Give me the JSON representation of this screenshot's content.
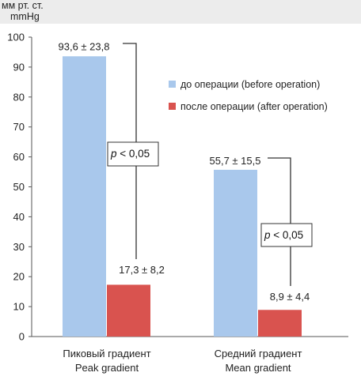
{
  "y_unit": {
    "line1": "мм рт. ст.",
    "line2": "mmHg"
  },
  "colors": {
    "before": "#a9c8ec",
    "after": "#d9534f",
    "axis": "#555555",
    "bracket": "#333333"
  },
  "chart_data": {
    "type": "bar",
    "ylim": [
      0,
      100
    ],
    "yticks": [
      0,
      10,
      20,
      30,
      40,
      50,
      60,
      70,
      80,
      90,
      100
    ],
    "grid": false,
    "legend_position": "top-right",
    "categories": [
      {
        "line1": "Пиковый градиент",
        "line2": "Peak gradient"
      },
      {
        "line1": "Средний градиент",
        "line2": "Mean gradient"
      }
    ],
    "series": [
      {
        "name": "до операции (before operation)",
        "values": [
          93.6,
          55.7
        ],
        "labels": [
          "93,6 ± 23,8",
          "55,7 ± 15,5"
        ]
      },
      {
        "name": "после операции (after operation)",
        "values": [
          17.3,
          8.9
        ],
        "labels": [
          "17,3 ± 8,2",
          "8,9 ± 4,4"
        ]
      }
    ],
    "annotations": [
      {
        "category": 0,
        "text": "< 0,05",
        "prefix": "p"
      },
      {
        "category": 1,
        "text": "< 0,05",
        "prefix": "p"
      }
    ]
  }
}
